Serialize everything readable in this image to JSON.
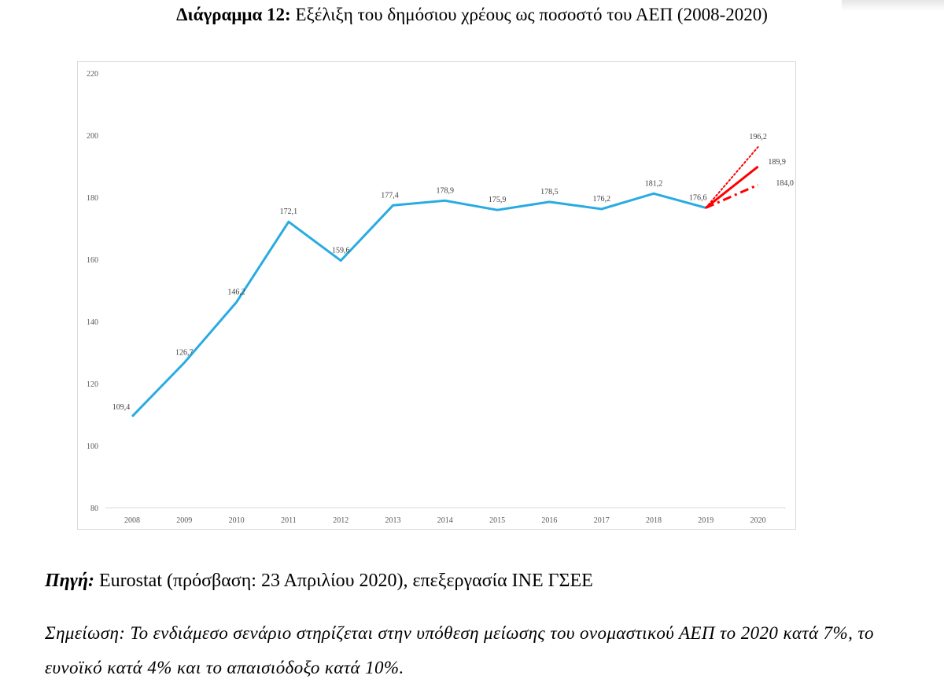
{
  "title": {
    "bold": "Διάγραμμα 12:",
    "text": "Εξέλιξη του δημόσιου χρέους ως ποσοστό του ΑΕΠ (2008-2020)"
  },
  "chart_data": {
    "type": "line",
    "categories": [
      "2008",
      "2009",
      "2010",
      "2011",
      "2012",
      "2013",
      "2014",
      "2015",
      "2016",
      "2017",
      "2018",
      "2019",
      "2020"
    ],
    "ylim": [
      80,
      220
    ],
    "yticks": [
      80,
      100,
      120,
      140,
      160,
      180,
      200,
      220
    ],
    "ytick_labels": [
      "80",
      "100",
      "120",
      "140",
      "160",
      "180",
      "200",
      "220"
    ],
    "grid": false,
    "series": [
      {
        "values": [
          109.4,
          126.7,
          146.2,
          172.1,
          159.6,
          177.4,
          178.9,
          175.9,
          178.5,
          176.2,
          181.2,
          176.6,
          null
        ],
        "labels": [
          "109,4",
          "126,7",
          "146,2",
          "172,1",
          "159,6",
          "177,4",
          "178,9",
          "175,9",
          "178,5",
          "176,2",
          "181,2",
          "176,6",
          ""
        ],
        "color": "#29abe2",
        "style": "solid"
      },
      {
        "values": [
          null,
          null,
          null,
          null,
          null,
          null,
          null,
          null,
          null,
          null,
          null,
          176.6,
          196.2
        ],
        "labels": [
          "",
          "",
          "",
          "",
          "",
          "",
          "",
          "",
          "",
          "",
          "",
          "",
          "196,2"
        ],
        "color": "#ff0000",
        "style": "dotted"
      },
      {
        "values": [
          null,
          null,
          null,
          null,
          null,
          null,
          null,
          null,
          null,
          null,
          null,
          176.6,
          189.9
        ],
        "labels": [
          "",
          "",
          "",
          "",
          "",
          "",
          "",
          "",
          "",
          "",
          "",
          "",
          "189,9"
        ],
        "color": "#ff0000",
        "style": "solid"
      },
      {
        "values": [
          null,
          null,
          null,
          null,
          null,
          null,
          null,
          null,
          null,
          null,
          null,
          176.6,
          184.0
        ],
        "labels": [
          "",
          "",
          "",
          "",
          "",
          "",
          "",
          "",
          "",
          "",
          "",
          "",
          "184,0"
        ],
        "color": "#ff0000",
        "style": "dashdot"
      }
    ]
  },
  "source": {
    "label": "Πηγή",
    "colon": ":",
    "text": " Eurostat (πρόσβαση: 23 Απριλίου 2020), επεξεργασία ΙΝΕ ΓΣΕΕ"
  },
  "note": {
    "text": "Σημείωση: Το ενδιάμεσο σενάριο στηρίζεται στην υπόθεση μείωσης του ονομαστικού ΑΕΠ το 2020 κατά 7%, το ευνοϊκό κατά 4% και το απαισιόδοξο κατά 10%."
  }
}
